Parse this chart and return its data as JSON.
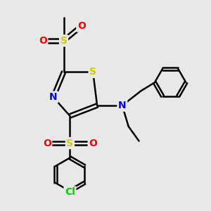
{
  "background_color": "#e8e8e8",
  "atom_colors": {
    "S": "#cccc00",
    "N": "#0000ff",
    "O": "#ff0000",
    "Cl": "#00cc00",
    "C": "#000000",
    "H": "#000000"
  },
  "bond_color": "#000000",
  "bond_width": 1.8,
  "font_size_atom": 10,
  "fig_width": 3.0,
  "fig_height": 3.0,
  "dpi": 100
}
